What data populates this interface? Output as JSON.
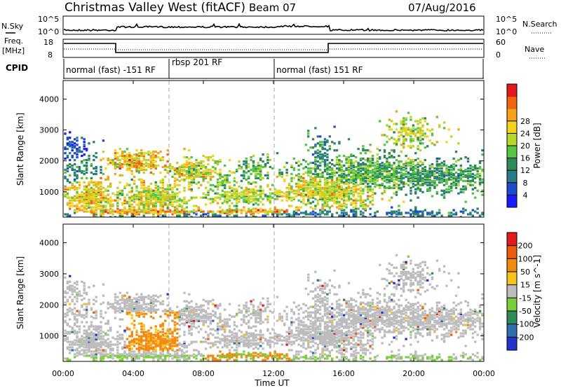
{
  "header": {
    "site": "Christmas Valley West (fitACF)",
    "beam": "Beam 07",
    "date": "07/Aug/2016"
  },
  "strips": {
    "nsky_label": "N.Sky",
    "nsky_top": "10^5",
    "nsky_bottom": "10^0",
    "nsearch_label": "N.Search",
    "nsearch_top": "10^5",
    "nsearch_bottom": "10^0",
    "freq_label_1": "Freq.",
    "freq_label_2": "[MHz]",
    "freq_top": "18",
    "freq_bottom": "8",
    "nave_label": "Nave",
    "nave_top": "60",
    "nave_bottom": "0",
    "cpid_label": "CPID",
    "cpid_segments": [
      "normal (fast) -151 RF",
      "rbsp 201 RF",
      "normal (fast) 151 RF"
    ]
  },
  "chart_data": [
    {
      "type": "heatmap",
      "ylabel": "Slant Range [km]",
      "xlabel": "Time UT",
      "x_ticks": [
        "00:00",
        "04:00",
        "08:00",
        "12:00",
        "16:00",
        "20:00",
        "00:00"
      ],
      "y_ticks": [
        "1000",
        "2000",
        "3000",
        "4000"
      ],
      "colorbar": {
        "label": "Power [dB]",
        "ticks": [
          "4",
          "8",
          "12",
          "16",
          "20",
          "24",
          "28"
        ],
        "colors": [
          "#1a1aff",
          "#1a4dcc",
          "#2a7a8a",
          "#2e8b57",
          "#57c443",
          "#b8d62a",
          "#f5d31b",
          "#f7a21b",
          "#f0650f",
          "#e31a1c"
        ]
      }
    },
    {
      "type": "heatmap",
      "ylabel": "Slant Range [km]",
      "xlabel": "Time UT",
      "x_ticks": [
        "00:00",
        "04:00",
        "08:00",
        "12:00",
        "16:00",
        "20:00",
        "00:00"
      ],
      "y_ticks": [
        "1000",
        "2000",
        "3000",
        "4000"
      ],
      "colorbar": {
        "label": "Velocity [m s^-1]",
        "ticks": [
          "200",
          "100",
          "50",
          "15",
          "-15",
          "-50",
          "-100",
          "-200"
        ],
        "colors": [
          "#2233cc",
          "#2f6fb0",
          "#2e8b57",
          "#7ccd3c",
          "#bcbcbc",
          "#f5c31b",
          "#f08a12",
          "#ee5a10",
          "#e31a1c"
        ]
      }
    }
  ]
}
